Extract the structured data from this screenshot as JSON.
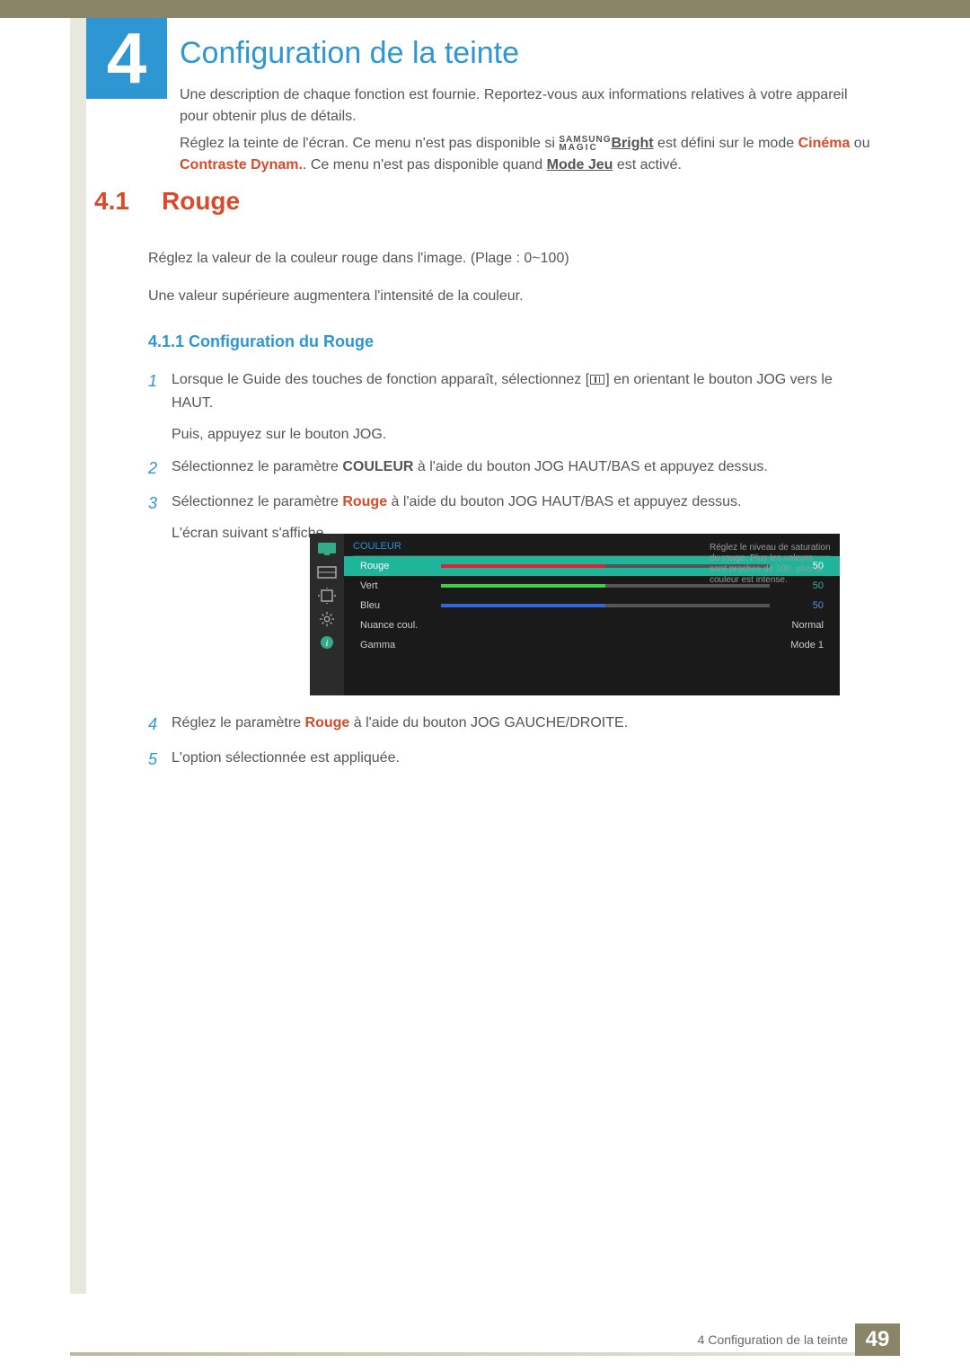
{
  "chapter": {
    "number": "4",
    "title": "Configuration de la teinte"
  },
  "intro": {
    "p1": "Une description de chaque fonction est fournie. Reportez-vous aux informations relatives à votre appareil pour obtenir plus de détails.",
    "p2_a": "Réglez la teinte de l'écran. Ce menu n'est pas disponible si ",
    "magic_top": "SAMSUNG",
    "magic_bot": "MAGIC",
    "bright": "Bright",
    "p2_b": " est défini sur le mode ",
    "cinema": "Cinéma",
    "ou": " ou ",
    "contraste": "Contraste Dynam.",
    "p2_c": ". Ce menu n'est pas disponible quand ",
    "modejeu": "Mode Jeu",
    "p2_d": " est activé."
  },
  "section": {
    "number": "4.1",
    "title": "Rouge"
  },
  "body": {
    "p1": "Réglez la valeur de la couleur rouge dans l'image. (Plage : 0~100)",
    "p2": "Une valeur supérieure augmentera l'intensité de la couleur."
  },
  "subsection": "4.1.1  Configuration du Rouge",
  "steps": {
    "s1_a": "Lorsque le Guide des touches de fonction apparaît, sélectionnez [",
    "s1_b": "] en orientant le bouton JOG vers le HAUT.",
    "s1_c": "Puis, appuyez sur le bouton JOG.",
    "s2_a": "Sélectionnez le paramètre ",
    "s2_couleur": "COULEUR",
    "s2_b": " à l'aide du bouton JOG HAUT/BAS et appuyez dessus.",
    "s3_a": "Sélectionnez le paramètre ",
    "s3_rouge": "Rouge",
    "s3_b": " à l'aide du bouton JOG HAUT/BAS et appuyez dessus.",
    "s3_c": "L'écran suivant s'affiche.",
    "s4_a": "Réglez le paramètre ",
    "s4_rouge": "Rouge",
    "s4_b": " à l'aide du bouton JOG GAUCHE/DROITE.",
    "s5": "L'option sélectionnée est appliquée."
  },
  "step_numbers": {
    "n1": "1",
    "n2": "2",
    "n3": "3",
    "n4": "4",
    "n5": "5"
  },
  "osd": {
    "header": "COULEUR",
    "tip": "Réglez le niveau de saturation du rouge. Plus les valeurs sont proches de 100, plus la couleur est intense.",
    "rows": [
      {
        "label": "Rouge",
        "value": "50",
        "fill_color": "#d23",
        "selected": true
      },
      {
        "label": "Vert",
        "value": "50",
        "fill_color": "#4c4",
        "selected": false
      },
      {
        "label": "Bleu",
        "value": "50",
        "fill_color": "#36d",
        "selected": false
      },
      {
        "label": "Nuance coul.",
        "value": "Normal",
        "fill_color": "",
        "selected": false
      },
      {
        "label": "Gamma",
        "value": "Mode 1",
        "fill_color": "",
        "selected": false
      }
    ]
  },
  "footer": {
    "text": "4 Configuration de la teinte",
    "page": "49"
  },
  "colors": {
    "accent_blue": "#2f96d4",
    "accent_red": "#d84a2a",
    "olive": "#8b8567",
    "osd_teal": "#1eb59a"
  }
}
